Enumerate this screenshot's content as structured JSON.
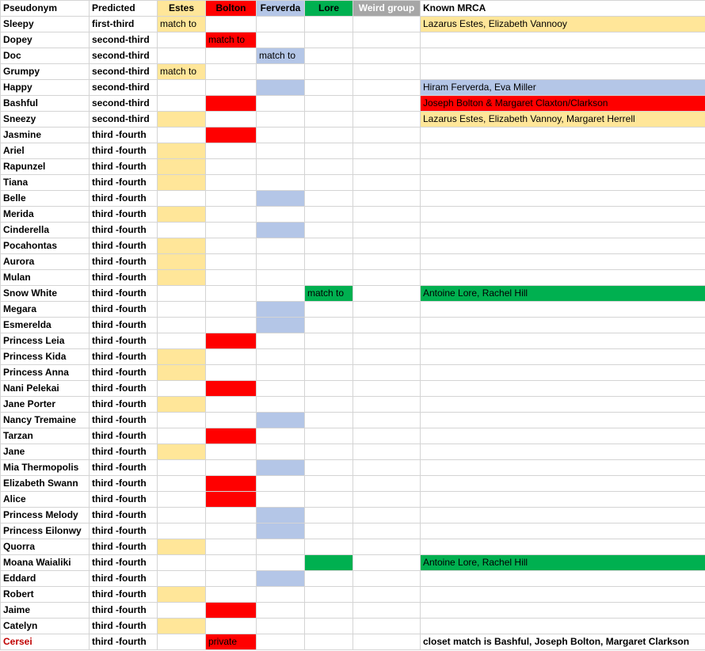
{
  "headers": [
    "Pseudonym",
    "Predicted",
    "Estes",
    "Bolton",
    "Ferverda",
    "Lore",
    "Weird group",
    "Known MRCA"
  ],
  "groups": {
    "estes": "#ffe699",
    "bolton": "#ff0000",
    "ferverda": "#b4c6e7",
    "lore": "#00b050",
    "weird": "#a6a6a6"
  },
  "rows": [
    {
      "name": "Sleepy",
      "predicted": "first-third",
      "group": "estes",
      "cell_text": "match to",
      "mrca": "Lazarus Estes, Elizabeth Vannooy"
    },
    {
      "name": "Dopey",
      "predicted": "second-third",
      "group": "bolton",
      "cell_text": "match to",
      "mrca": ""
    },
    {
      "name": "Doc",
      "predicted": "second-third",
      "group": "ferverda",
      "cell_text": "match to",
      "mrca": ""
    },
    {
      "name": "Grumpy",
      "predicted": "second-third",
      "group": "estes",
      "cell_text": "match to",
      "mrca": ""
    },
    {
      "name": "Happy",
      "predicted": "second-third",
      "group": "ferverda",
      "cell_text": "",
      "mrca": "Hiram Ferverda, Eva Miller"
    },
    {
      "name": "Bashful",
      "predicted": "second-third",
      "group": "bolton",
      "cell_text": "",
      "mrca": "Joseph Bolton & Margaret Claxton/Clarkson"
    },
    {
      "name": "Sneezy",
      "predicted": "second-third",
      "group": "estes",
      "cell_text": "",
      "mrca": "Lazarus Estes, Elizabeth Vannoy, Margaret Herrell"
    },
    {
      "name": "Jasmine",
      "predicted": "third -fourth",
      "group": "bolton",
      "cell_text": "",
      "mrca": ""
    },
    {
      "name": "Ariel",
      "predicted": "third -fourth",
      "group": "estes",
      "cell_text": "",
      "mrca": ""
    },
    {
      "name": "Rapunzel",
      "predicted": "third -fourth",
      "group": "estes",
      "cell_text": "",
      "mrca": ""
    },
    {
      "name": "Tiana",
      "predicted": "third -fourth",
      "group": "estes",
      "cell_text": "",
      "mrca": ""
    },
    {
      "name": "Belle",
      "predicted": "third -fourth",
      "group": "ferverda",
      "cell_text": "",
      "mrca": ""
    },
    {
      "name": "Merida",
      "predicted": "third -fourth",
      "group": "estes",
      "cell_text": "",
      "mrca": ""
    },
    {
      "name": "Cinderella",
      "predicted": "third -fourth",
      "group": "ferverda",
      "cell_text": "",
      "mrca": ""
    },
    {
      "name": "Pocahontas",
      "predicted": "third -fourth",
      "group": "estes",
      "cell_text": "",
      "mrca": ""
    },
    {
      "name": "Aurora",
      "predicted": "third -fourth",
      "group": "estes",
      "cell_text": "",
      "mrca": ""
    },
    {
      "name": "Mulan",
      "predicted": "third -fourth",
      "group": "estes",
      "cell_text": "",
      "mrca": ""
    },
    {
      "name": "Snow White",
      "predicted": "third -fourth",
      "group": "lore",
      "cell_text": "match to",
      "mrca": "Antoine Lore, Rachel Hill"
    },
    {
      "name": "Megara",
      "predicted": "third -fourth",
      "group": "ferverda",
      "cell_text": "",
      "mrca": ""
    },
    {
      "name": "Esmerelda",
      "predicted": "third -fourth",
      "group": "ferverda",
      "cell_text": "",
      "mrca": ""
    },
    {
      "name": "Princess Leia",
      "predicted": "third -fourth",
      "group": "bolton",
      "cell_text": "",
      "mrca": ""
    },
    {
      "name": "Princess Kida",
      "predicted": "third -fourth",
      "group": "estes",
      "cell_text": "",
      "mrca": ""
    },
    {
      "name": "Princess Anna",
      "predicted": "third -fourth",
      "group": "estes",
      "cell_text": "",
      "mrca": ""
    },
    {
      "name": "Nani Pelekai",
      "predicted": "third -fourth",
      "group": "bolton",
      "cell_text": "",
      "mrca": ""
    },
    {
      "name": "Jane Porter",
      "predicted": "third -fourth",
      "group": "estes",
      "cell_text": "",
      "mrca": ""
    },
    {
      "name": "Nancy Tremaine",
      "predicted": "third -fourth",
      "group": "ferverda",
      "cell_text": "",
      "mrca": ""
    },
    {
      "name": "Tarzan",
      "predicted": "third -fourth",
      "group": "bolton",
      "cell_text": "",
      "mrca": ""
    },
    {
      "name": "Jane",
      "predicted": "third -fourth",
      "group": "estes",
      "cell_text": "",
      "mrca": ""
    },
    {
      "name": "Mia Thermopolis",
      "predicted": "third -fourth",
      "group": "ferverda",
      "cell_text": "",
      "mrca": ""
    },
    {
      "name": "Elizabeth Swann",
      "predicted": "third -fourth",
      "group": "bolton",
      "cell_text": "",
      "mrca": ""
    },
    {
      "name": "Alice",
      "predicted": "third -fourth",
      "group": "bolton",
      "cell_text": "",
      "mrca": ""
    },
    {
      "name": "Princess Melody",
      "predicted": "third -fourth",
      "group": "ferverda",
      "cell_text": "",
      "mrca": ""
    },
    {
      "name": "Princess Eilonwy",
      "predicted": "third -fourth",
      "group": "ferverda",
      "cell_text": "",
      "mrca": ""
    },
    {
      "name": "Quorra",
      "predicted": "third -fourth",
      "group": "estes",
      "cell_text": "",
      "mrca": ""
    },
    {
      "name": "Moana Waialiki",
      "predicted": "third -fourth",
      "group": "lore",
      "cell_text": "",
      "mrca": "Antoine Lore, Rachel Hill"
    },
    {
      "name": "Eddard",
      "predicted": "third -fourth",
      "group": "ferverda",
      "cell_text": "",
      "mrca": ""
    },
    {
      "name": "Robert",
      "predicted": "third -fourth",
      "group": "estes",
      "cell_text": "",
      "mrca": ""
    },
    {
      "name": "Jaime",
      "predicted": "third -fourth",
      "group": "bolton",
      "cell_text": "",
      "mrca": ""
    },
    {
      "name": "Catelyn",
      "predicted": "third -fourth",
      "group": "estes",
      "cell_text": "",
      "mrca": ""
    },
    {
      "name": "Cersei",
      "predicted": "third -fourth",
      "group": "bolton",
      "cell_text": "private",
      "mrca": "closet match is Bashful, Joseph Bolton, Margaret Clarkson",
      "name_color": "#c00000",
      "mrca_bold": true
    }
  ]
}
